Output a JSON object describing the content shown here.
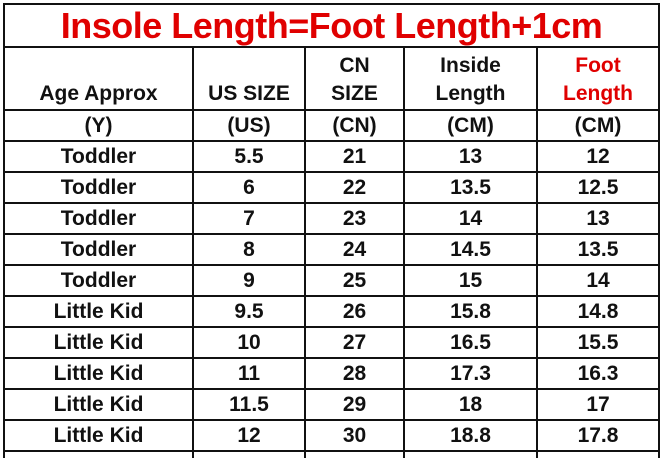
{
  "title": "Insole Length=Foot Length+1cm",
  "headers": [
    {
      "line1": "",
      "line2": "Age Approx",
      "unit": "(Y)"
    },
    {
      "line1": "",
      "line2": "US SIZE",
      "unit": "(US)"
    },
    {
      "line1": "CN",
      "line2": "SIZE",
      "unit": "(CN)"
    },
    {
      "line1": "Inside",
      "line2": "Length",
      "unit": "(CM)"
    },
    {
      "line1": "Foot",
      "line2": "Length",
      "unit": "(CM)"
    }
  ],
  "highlight_color": "#e00000",
  "rows": [
    [
      "Toddler",
      "5.5",
      "21",
      "13",
      "12"
    ],
    [
      "Toddler",
      "6",
      "22",
      "13.5",
      "12.5"
    ],
    [
      "Toddler",
      "7",
      "23",
      "14",
      "13"
    ],
    [
      "Toddler",
      "8",
      "24",
      "14.5",
      "13.5"
    ],
    [
      "Toddler",
      "9",
      "25",
      "15",
      "14"
    ],
    [
      "Little Kid",
      "9.5",
      "26",
      "15.8",
      "14.8"
    ],
    [
      "Little Kid",
      "10",
      "27",
      "16.5",
      "15.5"
    ],
    [
      "Little Kid",
      "11",
      "28",
      "17.3",
      "16.3"
    ],
    [
      "Little Kid",
      "11.5",
      "29",
      "18",
      "17"
    ],
    [
      "Little Kid",
      "12",
      "30",
      "18.8",
      "17.8"
    ]
  ]
}
